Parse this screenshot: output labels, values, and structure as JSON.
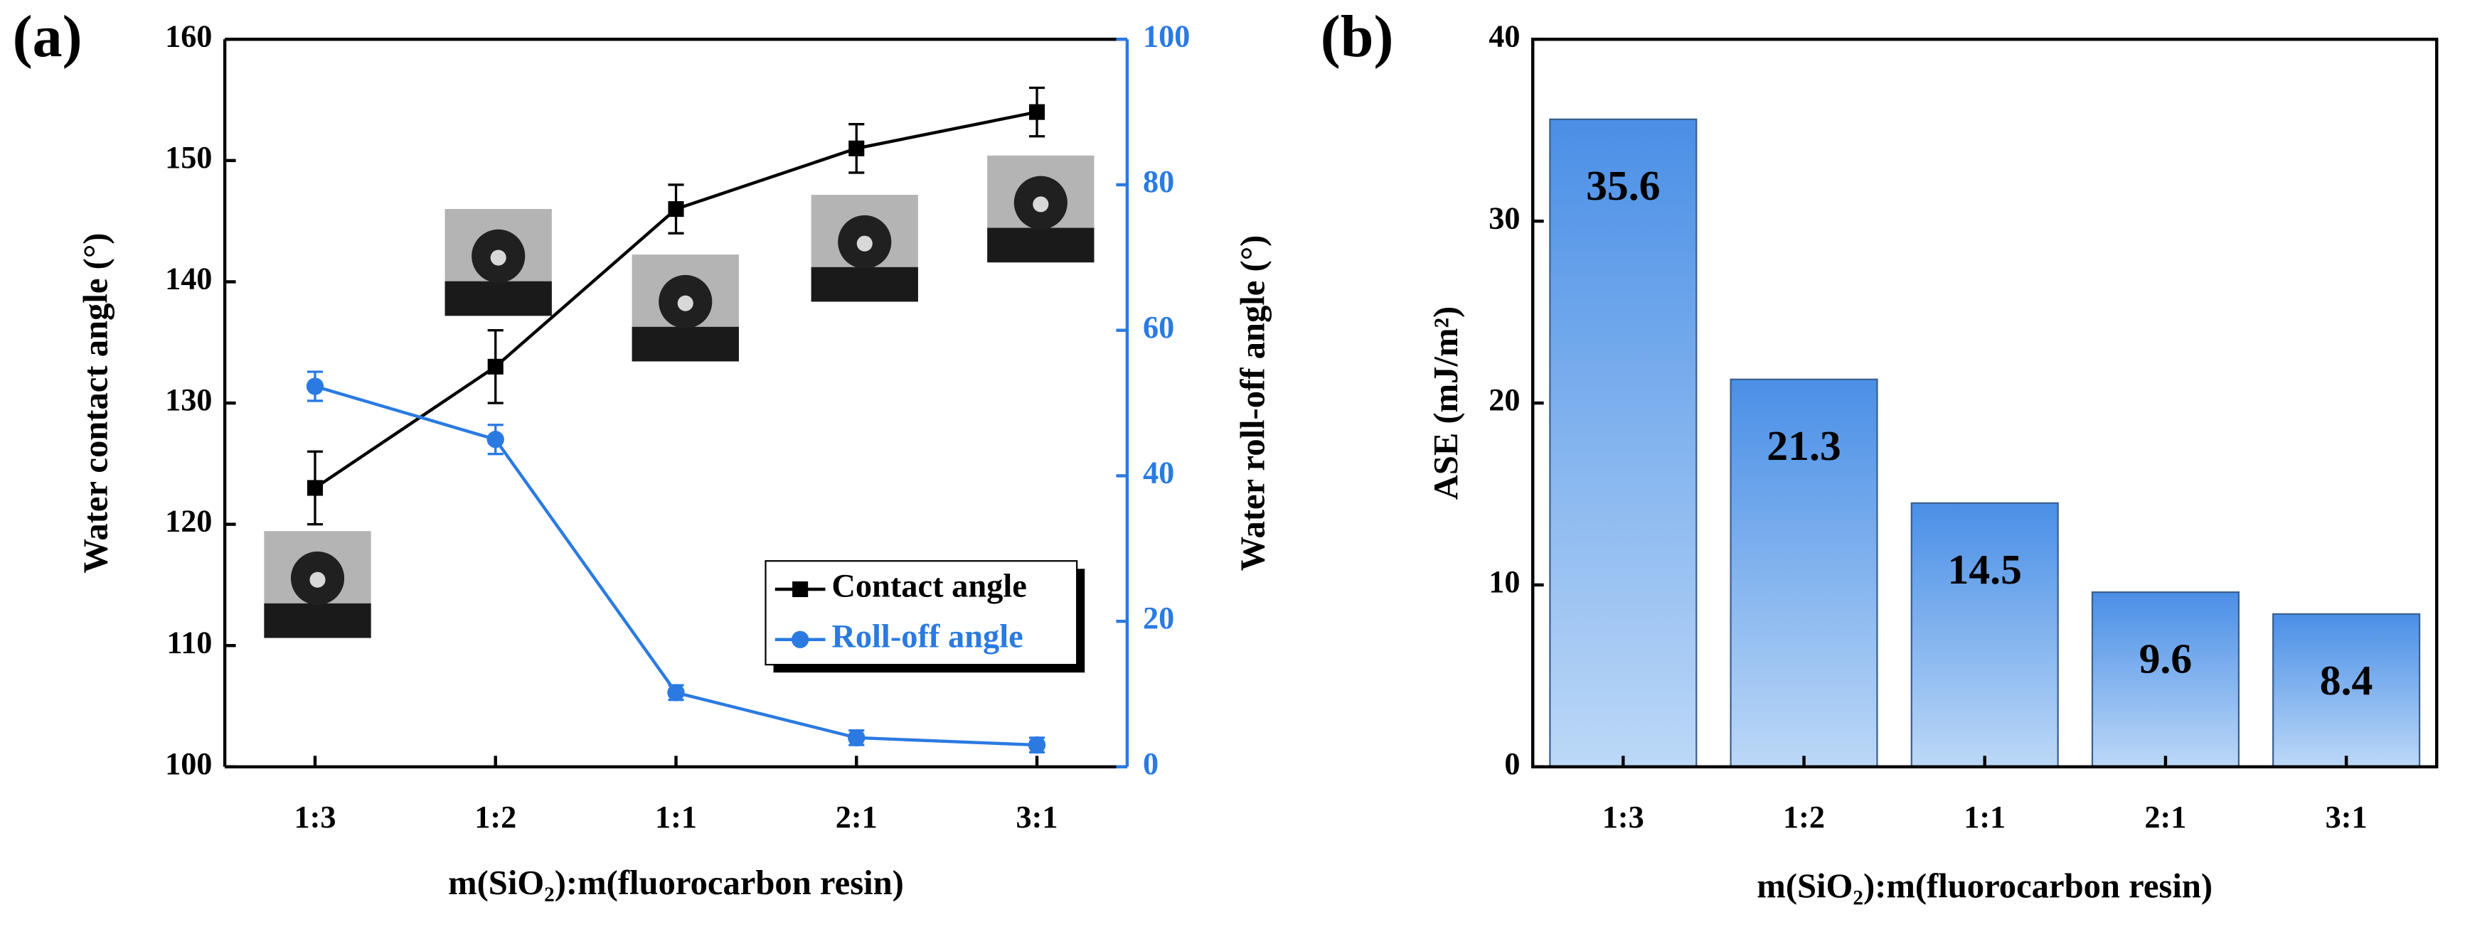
{
  "chart_data": [
    {
      "type": "line",
      "panel_label": "(a)",
      "categories": [
        "1:3",
        "1:2",
        "1:1",
        "2:1",
        "3:1"
      ],
      "xlabel": "m(SiO₂):m(fluorocarbon  resin)",
      "ylabel": "Water contact angle (°)",
      "y2label": "Water roll-off angle (°)",
      "ylim": [
        100,
        160
      ],
      "yticks": [
        100,
        110,
        120,
        130,
        140,
        150,
        160
      ],
      "y2lim": [
        0,
        100
      ],
      "y2ticks": [
        0,
        20,
        40,
        60,
        80,
        100
      ],
      "legend": "lower right",
      "series": [
        {
          "name": "Contact angle",
          "color": "#000000",
          "marker": "square",
          "values": [
            123,
            133,
            146,
            151,
            154
          ],
          "errors": [
            3,
            3,
            2,
            2,
            2
          ]
        },
        {
          "name": "Roll-off angle",
          "color": "#2a7ae2",
          "marker": "circle",
          "axis": "y2",
          "values": [
            52.3,
            45,
            10.2,
            4,
            3
          ],
          "errors": [
            2,
            2,
            1,
            1,
            1
          ]
        }
      ]
    },
    {
      "type": "bar",
      "panel_label": "(b)",
      "categories": [
        "1:3",
        "1:2",
        "1:1",
        "2:1",
        "3:1"
      ],
      "xlabel": "m(SiO₂):m(fluorocarbon  resin)",
      "ylabel": "ASE (mJ/m²)",
      "ylim": [
        0,
        40
      ],
      "yticks": [
        0,
        10,
        20,
        30,
        40
      ],
      "color": "#4a8fe6",
      "values": [
        35.6,
        21.3,
        14.5,
        9.6,
        8.4
      ]
    }
  ]
}
